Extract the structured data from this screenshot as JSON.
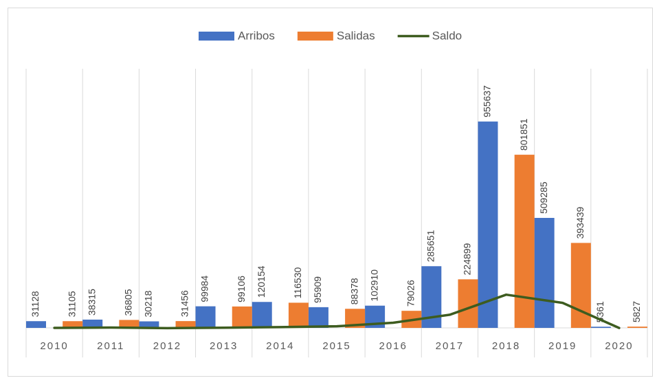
{
  "chart_data": {
    "type": "bar",
    "categories": [
      "2010",
      "2011",
      "2012",
      "2013",
      "2014",
      "2015",
      "2016",
      "2017",
      "2018",
      "2019",
      "2020"
    ],
    "series": [
      {
        "name": "Arribos",
        "color": "#4472c4",
        "type": "bar",
        "values": [
          31128,
          38315,
          30218,
          99984,
          120154,
          95909,
          102910,
          285651,
          955637,
          509285,
          5361
        ]
      },
      {
        "name": "Salidas",
        "color": "#ed7d31",
        "type": "bar",
        "values": [
          31105,
          36805,
          31456,
          99106,
          116530,
          88378,
          79026,
          224899,
          801851,
          393439,
          5827
        ]
      },
      {
        "name": "Saldo",
        "color": "#3d5c1f",
        "type": "line",
        "values": [
          23,
          1510,
          -1238,
          878,
          3624,
          7531,
          23884,
          60752,
          153786,
          115846,
          -466
        ]
      }
    ],
    "ylim": [
      0,
      1200000
    ],
    "grid": true,
    "legend": "top"
  }
}
